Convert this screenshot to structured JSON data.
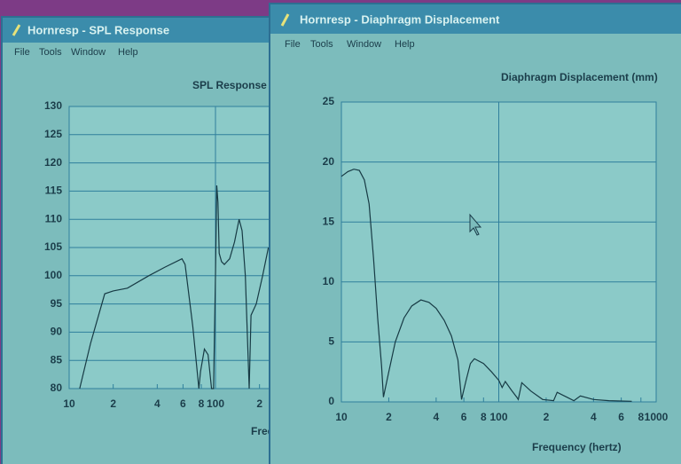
{
  "windows": [
    {
      "title": "Hornresp - SPL Response",
      "menu": [
        "File",
        "Tools",
        "Window",
        "Help"
      ],
      "chart_data": {
        "type": "line",
        "title": "SPL Response",
        "x_label": "Frequency (hertz)",
        "x": [
          11.8,
          14,
          17.5,
          20,
          25,
          35,
          45,
          59,
          62,
          70,
          77,
          79,
          84,
          89,
          94,
          97,
          100,
          102,
          104,
          106,
          110,
          115,
          125,
          135,
          145,
          152,
          160,
          170,
          175,
          190,
          210,
          230
        ],
        "series": [
          {
            "color": "#173a44",
            "values": [
              80,
              88,
              96.8,
              97.3,
              97.8,
              100,
              101.5,
              103,
              102,
              91,
              80,
              83,
              87,
              86,
              80,
              80,
              100,
              116,
              113,
              104,
              102.5,
              102,
              103,
              106,
              110,
              108,
              100,
              80,
              93,
              95,
              100,
              105
            ]
          }
        ],
        "xscale": "log",
        "xlim": [
          10,
          1000
        ],
        "ylim": [
          80,
          130
        ],
        "xticks": [
          10,
          {
            "value": 20,
            "label": "2"
          },
          {
            "value": 40,
            "label": "4"
          },
          {
            "value": 60,
            "label": "6"
          },
          {
            "value": 80,
            "label": "8"
          },
          100,
          {
            "value": 200,
            "label": "2"
          }
        ],
        "yticks": [
          80,
          85,
          90,
          95,
          100,
          105,
          110,
          115,
          120,
          125,
          130
        ],
        "grid": true
      }
    },
    {
      "title": "Hornresp - Diaphragm Displacement",
      "menu": [
        "File",
        "Tools",
        "Window",
        "Help"
      ],
      "chart_data": {
        "type": "line",
        "title": "Diaphragm Displacement (mm)",
        "x_label": "Frequency (hertz)",
        "x": [
          10,
          11,
          12,
          13,
          14,
          15,
          16,
          17,
          18,
          18.5,
          20,
          22,
          25,
          28,
          32,
          36,
          40,
          45,
          50,
          55,
          58,
          62,
          66,
          70,
          80,
          90,
          100,
          105,
          110,
          120,
          130,
          133,
          140,
          160,
          190,
          223,
          235,
          270,
          300,
          330,
          400,
          500,
          700
        ],
        "series": [
          {
            "color": "#173a44",
            "values": [
              18.8,
              19.2,
              19.4,
              19.3,
              18.5,
              16.5,
              12,
              7,
              3,
              0.4,
              2.5,
              5,
              7,
              8,
              8.5,
              8.3,
              7.8,
              6.8,
              5.5,
              3.5,
              0.2,
              1.8,
              3.2,
              3.6,
              3.2,
              2.5,
              1.8,
              1.2,
              1.7,
              1.0,
              0.4,
              0.2,
              1.6,
              0.9,
              0.2,
              0.1,
              0.8,
              0.4,
              0.1,
              0.5,
              0.2,
              0.1,
              0.05
            ]
          }
        ],
        "xscale": "log",
        "xlim": [
          10,
          1000
        ],
        "ylim": [
          0,
          25
        ],
        "xticks": [
          10,
          {
            "value": 20,
            "label": "2"
          },
          {
            "value": 40,
            "label": "4"
          },
          {
            "value": 60,
            "label": "6"
          },
          {
            "value": 80,
            "label": "8"
          },
          100,
          {
            "value": 200,
            "label": "2"
          },
          {
            "value": 400,
            "label": "4"
          },
          {
            "value": 600,
            "label": "6"
          },
          {
            "value": 800,
            "label": "8"
          },
          1000
        ],
        "yticks": [
          0,
          5,
          10,
          15,
          20,
          25
        ],
        "grid": true
      }
    }
  ]
}
